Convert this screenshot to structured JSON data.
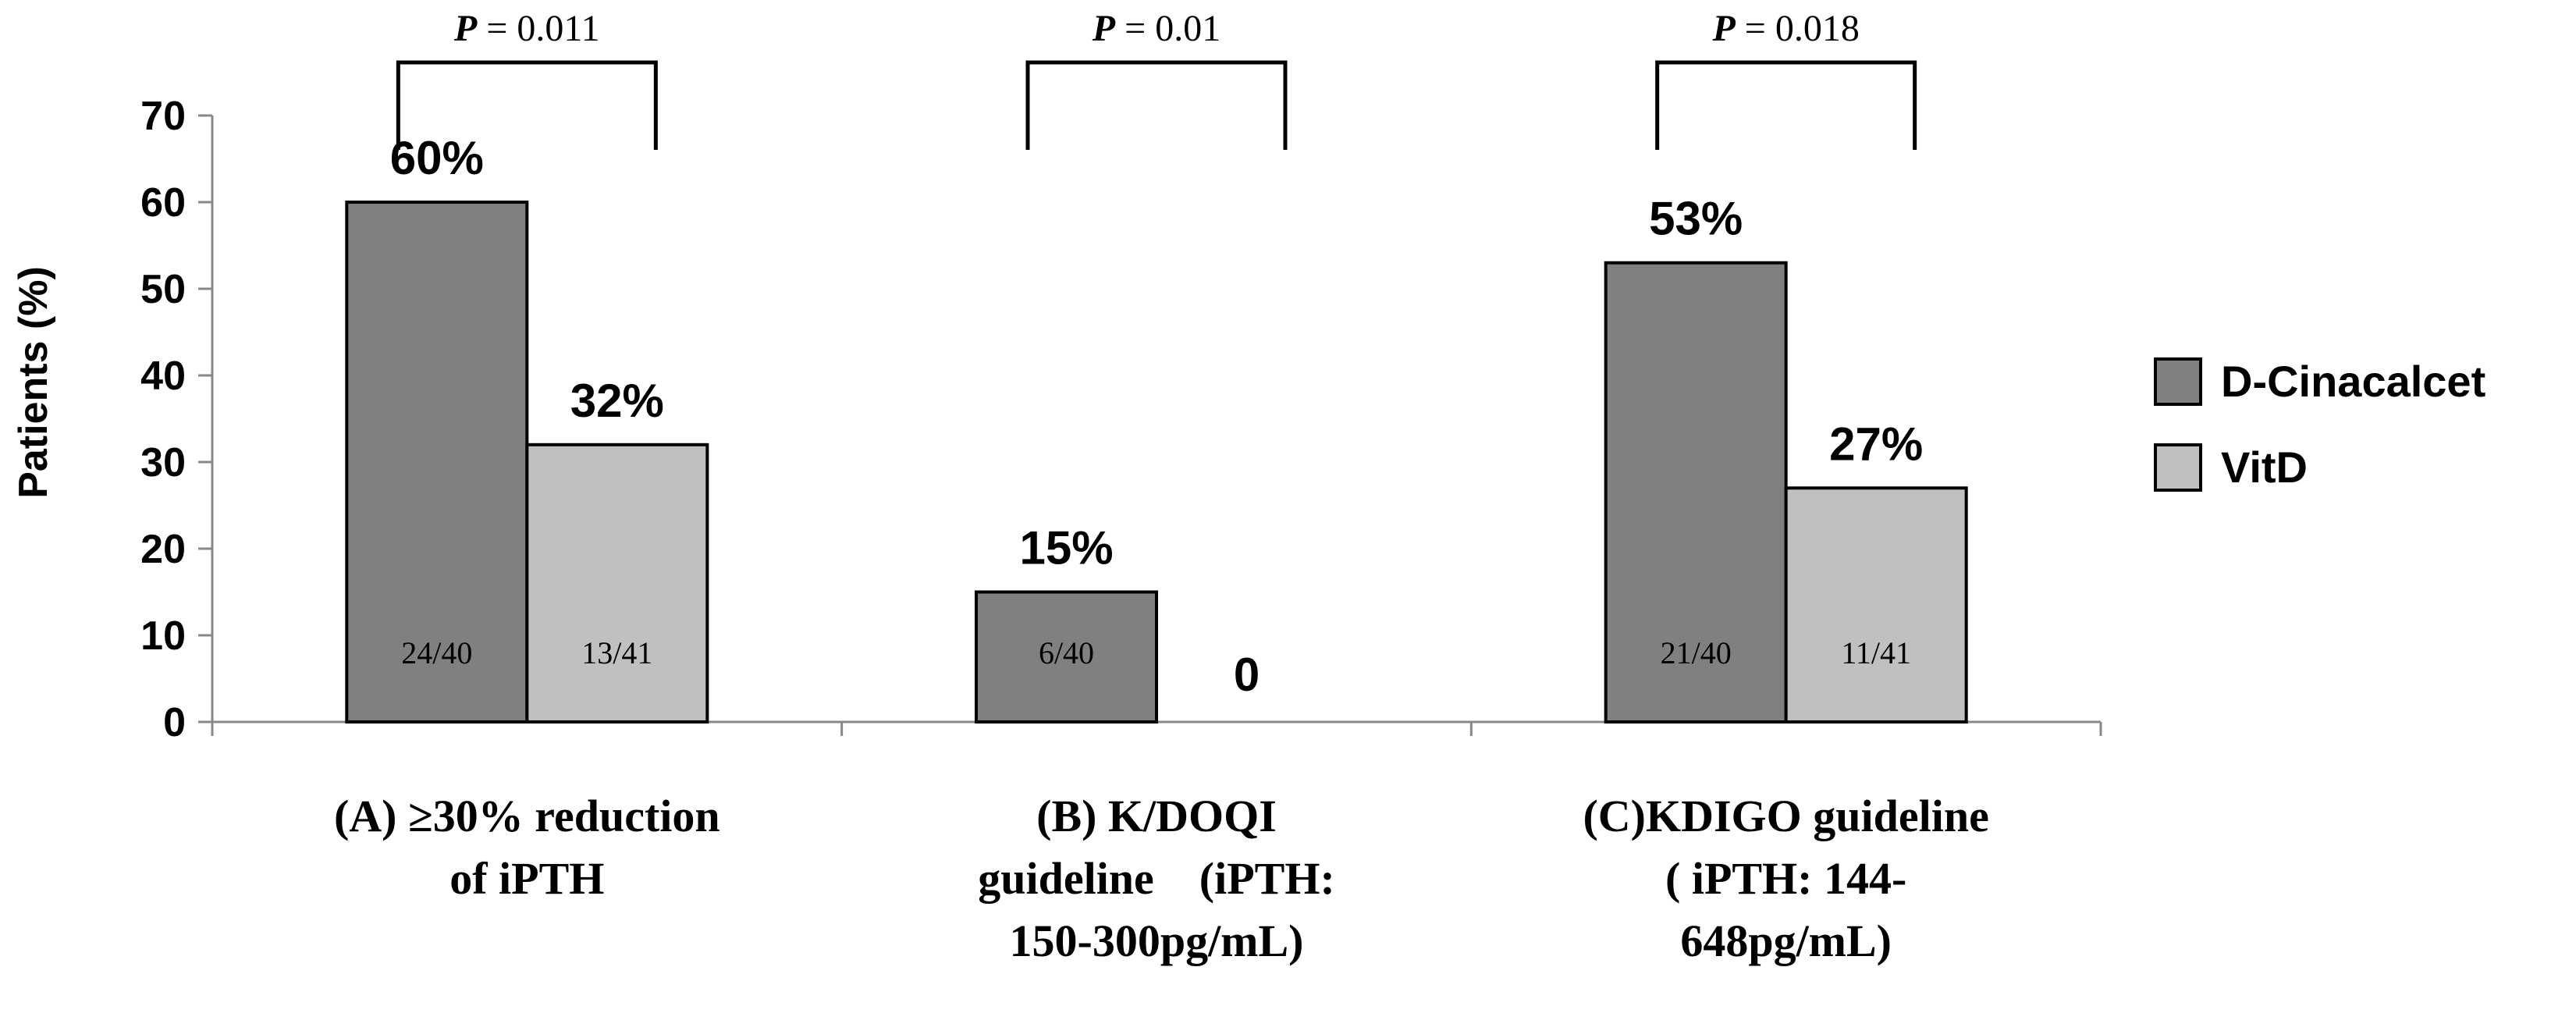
{
  "chart_data": {
    "type": "bar",
    "ylabel": "Patients (%)",
    "ylim": [
      0,
      70
    ],
    "yticks": [
      0,
      10,
      20,
      30,
      40,
      50,
      60,
      70
    ],
    "categories": [
      [
        "(A) ≥30% reduction",
        "of iPTH"
      ],
      [
        "(B) K/DOQI",
        "guideline　(iPTH:",
        "150-300pg/mL)"
      ],
      [
        "(C)KDIGO guideline",
        "( iPTH: 144-",
        "648pg/mL)"
      ]
    ],
    "series": [
      {
        "name": "D-Cinacalcet",
        "color": "#808080",
        "values": [
          60,
          15,
          53
        ],
        "value_labels": [
          "60%",
          "15%",
          "53%"
        ],
        "fractions": [
          "24/40",
          "6/40",
          "21/40"
        ]
      },
      {
        "name": "VitD",
        "color": "#c0c0c0",
        "values": [
          32,
          0,
          27
        ],
        "value_labels": [
          "32%",
          "0",
          "27%"
        ],
        "fractions": [
          "13/41",
          "",
          "11/41"
        ]
      }
    ],
    "p_values": [
      {
        "prefix": "P",
        "text": " = 0.011"
      },
      {
        "prefix": "P",
        "text": " = 0.01"
      },
      {
        "prefix": "P",
        "text": " = 0.018"
      }
    ],
    "legend": [
      "D-Cinacalcet",
      "VitD"
    ],
    "legend_position": "right"
  }
}
